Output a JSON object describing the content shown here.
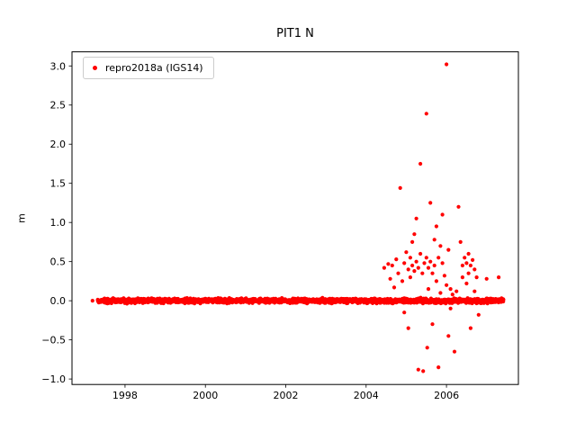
{
  "figure": {
    "background": "#ffffff"
  },
  "chart_data": {
    "type": "scatter",
    "title": "PIT1 N",
    "xlabel": "",
    "ylabel": "m",
    "xlim": [
      1996.68,
      2007.79
    ],
    "ylim": [
      -1.07,
      3.18
    ],
    "xticks": [
      1998,
      2000,
      2002,
      2004,
      2006
    ],
    "yticks": [
      -1.0,
      -0.5,
      0.0,
      0.5,
      1.0,
      1.5,
      2.0,
      2.5,
      3.0
    ],
    "grid": false,
    "axes_color": "#000000",
    "legend": {
      "position": "upper left",
      "entries": [
        {
          "label": "repro2018a (IGS14)",
          "marker": "dot",
          "color": "#ff0000"
        }
      ]
    },
    "series": [
      {
        "name": "repro2018a (IGS14)",
        "color": "#ff0000",
        "marker_radius": 2.1,
        "baseline_band": {
          "x_start": 1997.32,
          "x_end": 2007.42,
          "n_points": 2000,
          "y_center": 0.0,
          "y_spread": 0.028,
          "seed": 42
        },
        "points": [
          [
            1997.19,
            0.0
          ],
          [
            2004.45,
            0.42
          ],
          [
            2004.55,
            0.47
          ],
          [
            2004.6,
            0.28
          ],
          [
            2004.65,
            0.45
          ],
          [
            2004.7,
            0.17
          ],
          [
            2004.75,
            0.53
          ],
          [
            2004.8,
            0.35
          ],
          [
            2004.85,
            1.44
          ],
          [
            2004.9,
            0.25
          ],
          [
            2004.95,
            0.48
          ],
          [
            2004.95,
            -0.15
          ],
          [
            2005.0,
            0.62
          ],
          [
            2005.05,
            0.4
          ],
          [
            2005.05,
            -0.35
          ],
          [
            2005.1,
            0.55
          ],
          [
            2005.1,
            0.3
          ],
          [
            2005.15,
            0.75
          ],
          [
            2005.15,
            0.45
          ],
          [
            2005.2,
            0.85
          ],
          [
            2005.2,
            0.38
          ],
          [
            2005.25,
            1.05
          ],
          [
            2005.25,
            0.5
          ],
          [
            2005.3,
            0.42
          ],
          [
            2005.3,
            -0.88
          ],
          [
            2005.35,
            1.75
          ],
          [
            2005.35,
            0.6
          ],
          [
            2005.4,
            0.35
          ],
          [
            2005.42,
            -0.9
          ],
          [
            2005.45,
            0.48
          ],
          [
            2005.5,
            2.39
          ],
          [
            2005.5,
            0.55
          ],
          [
            2005.52,
            -0.6
          ],
          [
            2005.55,
            0.42
          ],
          [
            2005.55,
            0.15
          ],
          [
            2005.6,
            1.25
          ],
          [
            2005.6,
            0.5
          ],
          [
            2005.65,
            0.35
          ],
          [
            2005.65,
            -0.3
          ],
          [
            2005.7,
            0.78
          ],
          [
            2005.7,
            0.45
          ],
          [
            2005.75,
            0.95
          ],
          [
            2005.75,
            0.25
          ],
          [
            2005.8,
            0.55
          ],
          [
            2005.8,
            -0.85
          ],
          [
            2005.85,
            0.7
          ],
          [
            2005.85,
            0.1
          ],
          [
            2005.9,
            1.1
          ],
          [
            2005.9,
            0.48
          ],
          [
            2005.95,
            0.32
          ],
          [
            2006.0,
            3.02
          ],
          [
            2006.0,
            0.2
          ],
          [
            2006.05,
            0.65
          ],
          [
            2006.05,
            -0.45
          ],
          [
            2006.1,
            0.15
          ],
          [
            2006.1,
            -0.1
          ],
          [
            2006.15,
            0.08
          ],
          [
            2006.2,
            -0.65
          ],
          [
            2006.25,
            0.12
          ],
          [
            2006.3,
            1.2
          ],
          [
            2006.35,
            0.75
          ],
          [
            2006.4,
            0.45
          ],
          [
            2006.4,
            0.3
          ],
          [
            2006.45,
            0.55
          ],
          [
            2006.5,
            0.48
          ],
          [
            2006.5,
            0.22
          ],
          [
            2006.55,
            0.6
          ],
          [
            2006.55,
            0.35
          ],
          [
            2006.6,
            0.45
          ],
          [
            2006.6,
            -0.35
          ],
          [
            2006.65,
            0.52
          ],
          [
            2006.7,
            0.4
          ],
          [
            2006.7,
            0.12
          ],
          [
            2006.75,
            0.3
          ],
          [
            2006.8,
            -0.18
          ],
          [
            2007.0,
            0.28
          ],
          [
            2007.3,
            0.3
          ]
        ]
      }
    ]
  }
}
